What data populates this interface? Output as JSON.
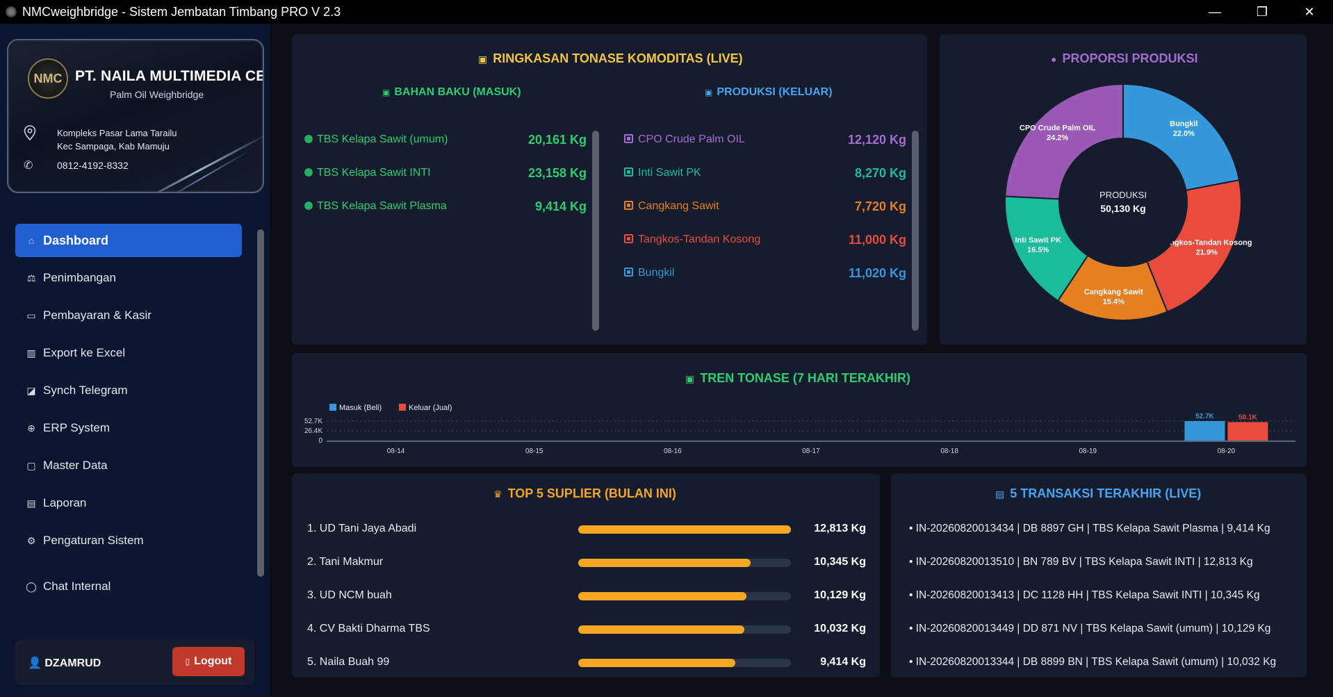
{
  "window": {
    "title": "NMCweighbridge - Sistem Jembatan Timbang PRO V 2.3",
    "minimize": "—",
    "maximize": "❐",
    "close": "✕"
  },
  "company": {
    "logo_text": "NMC",
    "name": "PT. NAILA MULTIMEDIA CENTER",
    "subtitle": "Palm Oil Weighbridge",
    "address_line1": "Kompleks Pasar Lama Tarailu",
    "address_line2": "Kec Sampaga, Kab Mamuju",
    "phone": "0812-4192-8332"
  },
  "nav": {
    "items": [
      {
        "label": "Dashboard",
        "icon": "home-icon",
        "glyph": "⌂"
      },
      {
        "label": "Penimbangan",
        "icon": "scale-icon",
        "glyph": "⚖"
      },
      {
        "label": "Pembayaran & Kasir",
        "icon": "card-icon",
        "glyph": "▭"
      },
      {
        "label": "Export ke Excel",
        "icon": "chart-icon",
        "glyph": "▥"
      },
      {
        "label": "Synch Telegram",
        "icon": "telegram-icon",
        "glyph": "◪"
      },
      {
        "label": "ERP System",
        "icon": "globe-icon",
        "glyph": "⊕"
      },
      {
        "label": "Master Data",
        "icon": "folder-icon",
        "glyph": "▢"
      },
      {
        "label": "Laporan",
        "icon": "document-icon",
        "glyph": "▤"
      },
      {
        "label": "Pengaturan Sistem",
        "icon": "gear-icon",
        "glyph": "⚙"
      }
    ],
    "chat": {
      "label": "Chat Internal",
      "glyph": "◯"
    }
  },
  "user": {
    "name": "DZAMRUD",
    "logout_label": "Logout"
  },
  "tonase": {
    "title": "RINGKASAN TONASE KOMODITAS (LIVE)",
    "bahan_baku_title": "BAHAN BAKU (MASUK)",
    "produksi_title": "PRODUKSI (KELUAR)",
    "bahan_baku": [
      {
        "name": "TBS Kelapa Sawit (umum)",
        "value": "20,161 Kg"
      },
      {
        "name": "TBS Kelapa Sawit INTI",
        "value": "23,158 Kg"
      },
      {
        "name": "TBS Kelapa Sawit Plasma",
        "value": "9,414 Kg"
      }
    ],
    "produksi": [
      {
        "name": "CPO Crude Palm OIL",
        "value": "12,120 Kg",
        "color": "#9b59b6"
      },
      {
        "name": "Inti Sawit PK",
        "value": "8,270 Kg",
        "color": "#1abc9c"
      },
      {
        "name": "Cangkang Sawit",
        "value": "7,720 Kg",
        "color": "#e67e22"
      },
      {
        "name": "Tangkos-Tandan Kosong",
        "value": "11,000 Kg",
        "color": "#e74c3c"
      },
      {
        "name": "Bungkil",
        "value": "11,020 Kg",
        "color": "#3498db"
      }
    ]
  },
  "pie": {
    "title": "PROPORSI PRODUKSI",
    "center_label": "PRODUKSI",
    "center_value": "50,130 Kg"
  },
  "trend": {
    "title": "TREN TONASE (7 HARI TERAKHIR)"
  },
  "suplier": {
    "title": "TOP 5 SUPLIER (BULAN INI)",
    "items": [
      {
        "name": "1. UD Tani Jaya Abadi",
        "value": "12,813 Kg",
        "fraction": 1.0
      },
      {
        "name": "2. Tani Makmur",
        "value": "10,345 Kg",
        "fraction": 0.81
      },
      {
        "name": "3. UD NCM buah",
        "value": "10,129 Kg",
        "fraction": 0.79
      },
      {
        "name": "4. CV Bakti Dharma TBS",
        "value": "10,032 Kg",
        "fraction": 0.78
      },
      {
        "name": "5. Naila Buah 99",
        "value": "9,414 Kg",
        "fraction": 0.74
      }
    ]
  },
  "transaksi": {
    "title": "5 TRANSAKSI TERAKHIR (LIVE)",
    "items": [
      "• IN-20260820013434 | DB 8897 GH | TBS Kelapa Sawit Plasma | 9,414 Kg",
      "• IN-20260820013510 | BN 789 BV | TBS Kelapa Sawit INTI | 12,813 Kg",
      "• IN-20260820013413 | DC 1128 HH | TBS Kelapa Sawit INTI | 10,345 Kg",
      "• IN-20260820013449 | DD 871 NV | TBS Kelapa Sawit (umum) | 10,129 Kg",
      "• IN-20260820013344 | DB 8899 BN | TBS Kelapa Sawit (umum) | 10,032 Kg"
    ]
  },
  "chart_data": [
    {
      "type": "pie",
      "title": "PROPORSI PRODUKSI",
      "center_label": "PRODUKSI",
      "center_value": "50,130 Kg",
      "slices": [
        {
          "label": "Bungkil",
          "value": 22.0,
          "display": "22.0%",
          "color": "#3498db"
        },
        {
          "label": "Tangkos-Tandan Kosong",
          "value": 21.9,
          "display": "21.9%",
          "color": "#e74c3c"
        },
        {
          "label": "Cangkang Sawit",
          "value": 15.4,
          "display": "15.4%",
          "color": "#e67e22"
        },
        {
          "label": "Inti Sawit PK",
          "value": 16.5,
          "display": "16.5%",
          "color": "#1abc9c"
        },
        {
          "label": "CPO Crude Palm OIL",
          "value": 24.2,
          "display": "24.2%",
          "color": "#9b59b6"
        }
      ]
    },
    {
      "type": "bar",
      "title": "TREN TONASE (7 HARI TERAKHIR)",
      "categories": [
        "08-14",
        "08-15",
        "08-16",
        "08-17",
        "08-18",
        "08-19",
        "08-20"
      ],
      "series": [
        {
          "name": "Masuk (Beli)",
          "color": "#3498db",
          "values": [
            0,
            0,
            0,
            0,
            0,
            0,
            52.7
          ],
          "labels": [
            "",
            "",
            "",
            "",
            "",
            "",
            "52.7K"
          ]
        },
        {
          "name": "Keluar (Jual)",
          "color": "#e74c3c",
          "values": [
            0,
            0,
            0,
            0,
            0,
            0,
            50.1
          ],
          "labels": [
            "",
            "",
            "",
            "",
            "",
            "",
            "50.1K"
          ]
        }
      ],
      "yticks": [
        "52.7K",
        "26.4K",
        "0"
      ],
      "ylim": [
        0,
        52.7
      ],
      "legend": "top-left"
    }
  ]
}
